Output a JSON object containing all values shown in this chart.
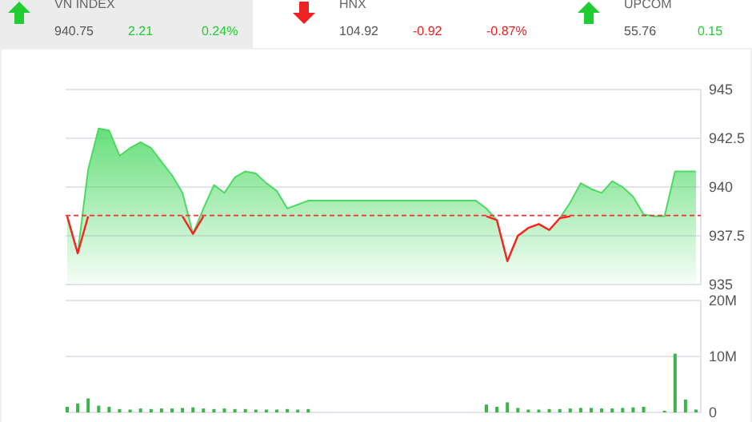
{
  "chart_data": [
    {
      "type": "other",
      "categories": [
        "VN INDEX",
        "HNX",
        "UPCOM"
      ],
      "colors": [
        "#22cc33",
        "#ee2222",
        "#22cc33"
      ],
      "annotations": [
        "940.75",
        "2.21",
        "0.24%",
        "104.92",
        "-0.92",
        "-0.87%",
        "55.76",
        "0.15"
      ]
    },
    {
      "type": "area",
      "categories": [
        null,
        null,
        null,
        null,
        null,
        null,
        null,
        null,
        null,
        null,
        null,
        null,
        null,
        null,
        null,
        null,
        null,
        null,
        null,
        null,
        null,
        null,
        null,
        null,
        null,
        null,
        null,
        null,
        null,
        null,
        null,
        null,
        null,
        null,
        null,
        null,
        null,
        null,
        null,
        null,
        null,
        null,
        null,
        null,
        null,
        null,
        null,
        null,
        null,
        null,
        null,
        null,
        null,
        null,
        null,
        null,
        null,
        null,
        null,
        null,
        null
      ],
      "series": [
        {
          "type": "area",
          "color": "#4cd964",
          "values": [
            938.5,
            936.6,
            940.9,
            943.0,
            942.9,
            941.6,
            942.0,
            942.3,
            942.0,
            941.3,
            940.6,
            939.7,
            937.6,
            938.9,
            940.1,
            939.7,
            940.5,
            940.8,
            940.7,
            940.2,
            939.8,
            938.9,
            939.1,
            939.3,
            939.3,
            939.3,
            939.3,
            939.3,
            939.3,
            939.3,
            939.3,
            939.3,
            939.3,
            939.3,
            939.3,
            939.3,
            939.3,
            939.3,
            939.3,
            939.3,
            938.9,
            938.3,
            936.2,
            937.5,
            937.9,
            938.1,
            937.8,
            938.4,
            939.2,
            940.2,
            939.9,
            939.7,
            940.3,
            940.0,
            939.5,
            938.6,
            938.5,
            938.5,
            940.8,
            940.8,
            940.8
          ]
        },
        {
          "type": "line",
          "color": "#ff2020",
          "values": [
            938.5,
            936.6,
            938.5,
            null,
            null,
            null,
            null,
            null,
            null,
            null,
            null,
            938.5,
            937.6,
            938.5,
            null,
            null,
            null,
            null,
            null,
            null,
            null,
            null,
            null,
            null,
            null,
            null,
            null,
            null,
            null,
            null,
            null,
            null,
            null,
            null,
            null,
            null,
            null,
            null,
            null,
            null,
            938.5,
            938.3,
            936.2,
            937.5,
            937.9,
            938.1,
            937.8,
            938.4,
            938.5,
            null,
            null,
            null,
            null,
            null,
            null,
            null,
            null,
            null,
            null,
            null,
            null
          ]
        }
      ],
      "ylim": [
        935,
        945
      ],
      "yticks": [
        935,
        {
          "value": 937.5,
          "label": "937.5"
        },
        940,
        {
          "value": 942.5,
          "label": "942.5"
        },
        945
      ],
      "grid": "y",
      "tick_labels": "y",
      "ref_lines": [
        {
          "axis": "y",
          "value": 938.54,
          "color": "#ee3333",
          "line_style": "dashed"
        }
      ]
    },
    {
      "type": "bar",
      "categories": [
        null,
        null,
        null,
        null,
        null,
        null,
        null,
        null,
        null,
        null,
        null,
        null,
        null,
        null,
        null,
        null,
        null,
        null,
        null,
        null,
        null,
        null,
        null,
        null,
        null,
        null,
        null,
        null,
        null,
        null,
        null,
        null,
        null,
        null,
        null,
        null,
        null,
        null,
        null,
        null,
        null,
        null,
        null,
        null,
        null,
        null,
        null,
        null,
        null,
        null,
        null,
        null,
        null,
        null,
        null,
        null,
        null,
        null,
        null,
        null,
        null
      ],
      "color": "#3cb44b",
      "values": [
        1.0,
        1.6,
        2.5,
        1.2,
        1.0,
        0.6,
        0.5,
        0.7,
        0.6,
        0.7,
        0.7,
        0.8,
        0.9,
        0.7,
        0.6,
        0.7,
        0.6,
        0.6,
        0.5,
        0.5,
        0.5,
        0.6,
        0.5,
        0.6,
        null,
        null,
        null,
        null,
        null,
        null,
        null,
        null,
        null,
        null,
        null,
        null,
        null,
        null,
        null,
        null,
        1.4,
        1.0,
        1.8,
        0.8,
        0.5,
        0.5,
        0.6,
        0.6,
        0.7,
        0.8,
        0.8,
        0.7,
        0.7,
        0.8,
        0.9,
        1.0,
        null,
        0.3,
        10.5,
        2.3,
        0.5
      ],
      "ylim": [
        0,
        20
      ],
      "yticks": [
        {
          "value": 0,
          "label": "0"
        },
        {
          "value": 10,
          "label": "10M"
        },
        {
          "value": 20,
          "label": "20M"
        }
      ],
      "grid": "y",
      "tick_labels": "y"
    }
  ]
}
